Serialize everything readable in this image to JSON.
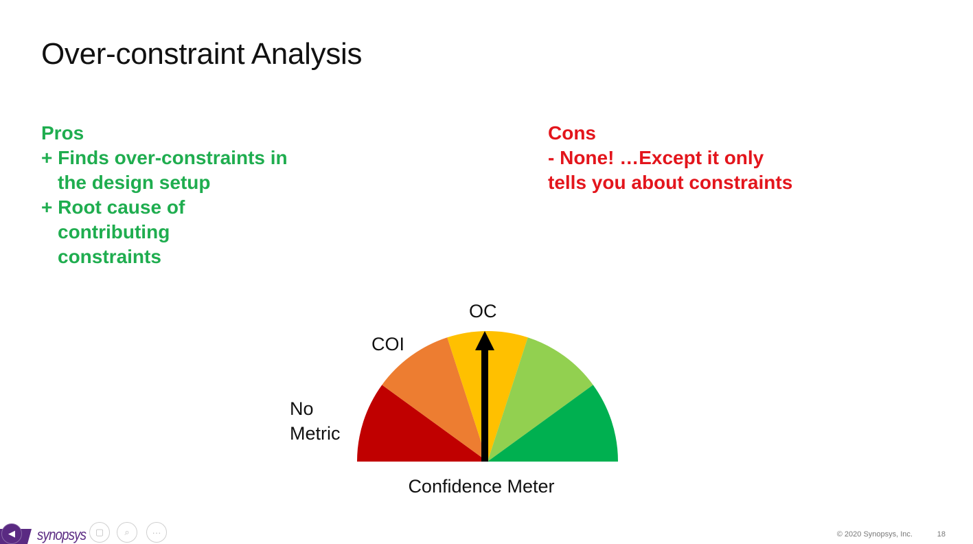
{
  "slide": {
    "title": "Over-constraint Analysis",
    "page_number": "18",
    "copyright": "© 2020 Synopsys, Inc.",
    "logo": "synopsys"
  },
  "pros": {
    "heading": "Pros",
    "items": [
      "+ Finds over-constraints in the design setup",
      "+ Root cause of contributing constraints"
    ]
  },
  "cons": {
    "heading": "Cons",
    "items": [
      "- None! …Except it only tells you about constraints"
    ]
  },
  "meter": {
    "title": "Confidence Meter",
    "labels": {
      "no_metric_line1": "No",
      "no_metric_line2": "Metric",
      "coi": "COI",
      "oc": "OC"
    },
    "segment_colors": [
      "#c00000",
      "#ed7d31",
      "#ffc000",
      "#92d050",
      "#00b050"
    ],
    "needle_color": "#000000"
  },
  "controls": [
    "previous-icon",
    "pen-icon",
    "slides-icon",
    "zoom-icon",
    "more-icon"
  ]
}
